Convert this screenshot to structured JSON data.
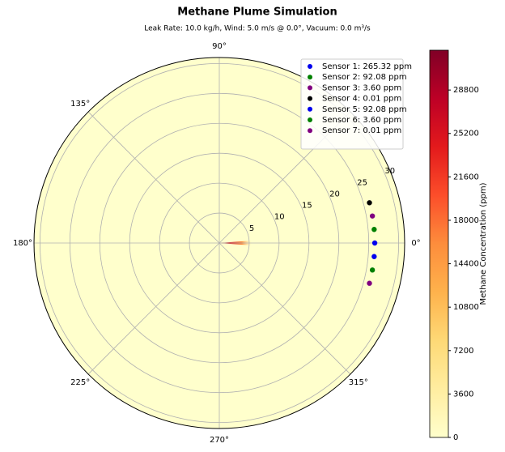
{
  "chart_data": {
    "type": "polar",
    "title": "Methane Plume Simulation",
    "subtitle": "Leak Rate: 10.0 kg/h, Wind: 5.0 m/s @ 0.0°, Vacuum: 0.0 m³/s",
    "rlim": [
      0,
      31
    ],
    "rticks": [
      5,
      10,
      15,
      20,
      25,
      30
    ],
    "thetaticks": [
      {
        "value": 0,
        "label": "0°"
      },
      {
        "value": 90,
        "label": "90°"
      },
      {
        "value": 135,
        "label": "135°"
      },
      {
        "value": 180,
        "label": "180°"
      },
      {
        "value": 225,
        "label": "225°"
      },
      {
        "value": 270,
        "label": "270°"
      },
      {
        "value": 315,
        "label": "315°"
      },
      {
        "value": 45,
        "label": ""
      }
    ],
    "grid": true,
    "series": [
      {
        "name": "Sensor 1: 265.32 ppm",
        "color": "#0000ee",
        "r": [
          26
        ],
        "theta": [
          0
        ]
      },
      {
        "name": "Sensor 2: 92.08 ppm",
        "color": "#008000",
        "r": [
          26
        ],
        "theta": [
          5
        ]
      },
      {
        "name": "Sensor 3: 3.60 ppm",
        "color": "#800080",
        "r": [
          26
        ],
        "theta": [
          10
        ]
      },
      {
        "name": "Sensor 4: 0.01 ppm",
        "color": "#000000",
        "r": [
          26
        ],
        "theta": [
          15
        ]
      },
      {
        "name": "Sensor 5: 92.08 ppm",
        "color": "#0000ee",
        "r": [
          26
        ],
        "theta": [
          -5
        ]
      },
      {
        "name": "Sensor 6: 3.60 ppm",
        "color": "#008000",
        "r": [
          26
        ],
        "theta": [
          -10
        ]
      },
      {
        "name": "Sensor 7: 0.01 ppm",
        "color": "#800080",
        "r": [
          26
        ],
        "theta": [
          -15
        ]
      }
    ],
    "legend": "upper right",
    "colorbar": {
      "label": "Methane Concentration (ppm)",
      "clim": [
        0,
        32100
      ],
      "ticks": [
        0,
        3600,
        7200,
        10800,
        14400,
        18000,
        21600,
        25200,
        28800
      ],
      "colormap": [
        "#ffffcc",
        "#ffeda0",
        "#fed976",
        "#feb24c",
        "#fd8d3c",
        "#fc4e2a",
        "#e31a1c",
        "#bd0026",
        "#800026"
      ]
    }
  }
}
